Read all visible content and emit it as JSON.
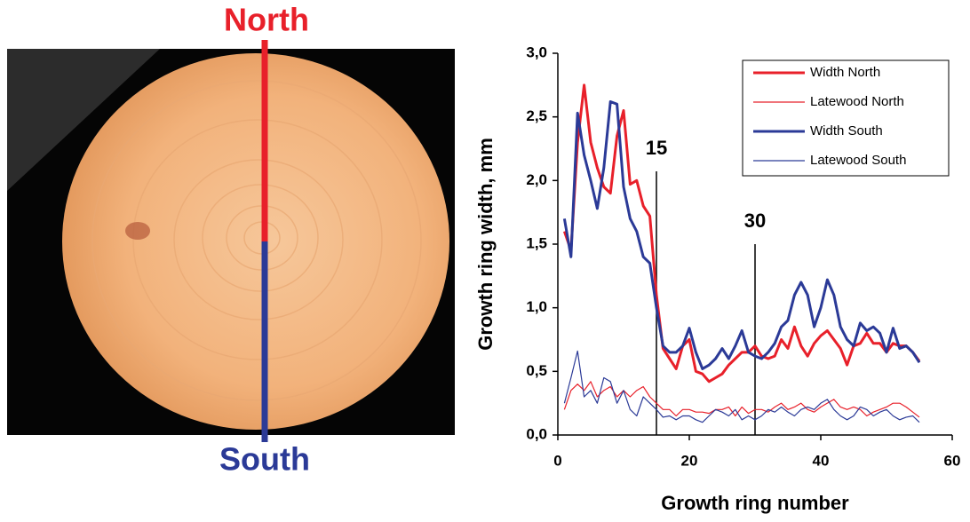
{
  "photo_labels": {
    "north": "North",
    "south": "South"
  },
  "chart_data": {
    "type": "line",
    "x_label": "Growth ring number",
    "y_label": "Growth ring width, mm",
    "x": [
      1,
      2,
      3,
      4,
      5,
      6,
      7,
      8,
      9,
      10,
      11,
      12,
      13,
      14,
      15,
      16,
      17,
      18,
      19,
      20,
      21,
      22,
      23,
      24,
      25,
      26,
      27,
      28,
      29,
      30,
      31,
      32,
      33,
      34,
      35,
      36,
      37,
      38,
      39,
      40,
      41,
      42,
      43,
      44,
      45,
      46,
      47,
      48,
      49,
      50,
      51,
      52,
      53,
      54,
      55
    ],
    "series": [
      {
        "name": "Width North",
        "color": "#e8202a",
        "width": 3,
        "values": [
          1.6,
          1.45,
          2.3,
          2.75,
          2.3,
          2.1,
          1.95,
          1.9,
          2.35,
          2.55,
          1.97,
          2.0,
          1.8,
          1.72,
          1.1,
          0.68,
          0.6,
          0.52,
          0.7,
          0.75,
          0.5,
          0.48,
          0.42,
          0.45,
          0.48,
          0.55,
          0.6,
          0.65,
          0.65,
          0.7,
          0.62,
          0.6,
          0.62,
          0.75,
          0.68,
          0.85,
          0.7,
          0.62,
          0.72,
          0.78,
          0.82,
          0.75,
          0.68,
          0.55,
          0.7,
          0.72,
          0.8,
          0.72,
          0.72,
          0.65,
          0.72,
          0.7,
          0.7,
          0.65,
          0.58
        ]
      },
      {
        "name": "Latewood North",
        "color": "#e8202a",
        "width": 1.2,
        "values": [
          0.2,
          0.35,
          0.4,
          0.35,
          0.42,
          0.3,
          0.35,
          0.38,
          0.3,
          0.35,
          0.3,
          0.35,
          0.38,
          0.3,
          0.25,
          0.2,
          0.2,
          0.15,
          0.2,
          0.2,
          0.18,
          0.18,
          0.17,
          0.2,
          0.2,
          0.22,
          0.15,
          0.22,
          0.17,
          0.2,
          0.2,
          0.18,
          0.22,
          0.25,
          0.2,
          0.22,
          0.25,
          0.2,
          0.18,
          0.22,
          0.25,
          0.28,
          0.22,
          0.2,
          0.22,
          0.2,
          0.15,
          0.18,
          0.2,
          0.22,
          0.25,
          0.25,
          0.22,
          0.18,
          0.14
        ]
      },
      {
        "name": "Width South",
        "color": "#2b3a97",
        "width": 3,
        "values": [
          1.7,
          1.4,
          2.53,
          2.2,
          2.0,
          1.78,
          2.1,
          2.62,
          2.6,
          1.95,
          1.7,
          1.6,
          1.4,
          1.35,
          1.0,
          0.7,
          0.65,
          0.65,
          0.7,
          0.84,
          0.65,
          0.52,
          0.55,
          0.6,
          0.68,
          0.6,
          0.7,
          0.82,
          0.65,
          0.62,
          0.6,
          0.65,
          0.72,
          0.85,
          0.9,
          1.1,
          1.2,
          1.1,
          0.85,
          1.0,
          1.22,
          1.1,
          0.85,
          0.75,
          0.7,
          0.88,
          0.82,
          0.85,
          0.8,
          0.65,
          0.84,
          0.68,
          0.7,
          0.65,
          0.57
        ]
      },
      {
        "name": "Latewood South",
        "color": "#2b3a97",
        "width": 1.2,
        "values": [
          0.25,
          0.45,
          0.66,
          0.3,
          0.35,
          0.25,
          0.45,
          0.42,
          0.25,
          0.35,
          0.2,
          0.15,
          0.3,
          0.25,
          0.2,
          0.14,
          0.15,
          0.12,
          0.15,
          0.15,
          0.12,
          0.1,
          0.15,
          0.2,
          0.18,
          0.15,
          0.2,
          0.12,
          0.15,
          0.12,
          0.15,
          0.2,
          0.18,
          0.22,
          0.18,
          0.15,
          0.2,
          0.22,
          0.2,
          0.25,
          0.28,
          0.2,
          0.15,
          0.12,
          0.15,
          0.22,
          0.2,
          0.15,
          0.18,
          0.2,
          0.15,
          0.12,
          0.14,
          0.15,
          0.1
        ]
      }
    ],
    "xlim": [
      0,
      60
    ],
    "xticks": [
      0,
      20,
      40,
      60
    ],
    "ylim": [
      0,
      3
    ],
    "yticks": [
      {
        "value": 0,
        "label": "0,0"
      },
      {
        "value": 0.5,
        "label": "0,5"
      },
      {
        "value": 1,
        "label": "1,0"
      },
      {
        "value": 1.5,
        "label": "1,5"
      },
      {
        "value": 2,
        "label": "2,0"
      },
      {
        "value": 2.5,
        "label": "2,5"
      },
      {
        "value": 3,
        "label": "3,0"
      }
    ],
    "vlines": [
      15,
      30
    ],
    "legend": "upper right",
    "grid": false
  }
}
